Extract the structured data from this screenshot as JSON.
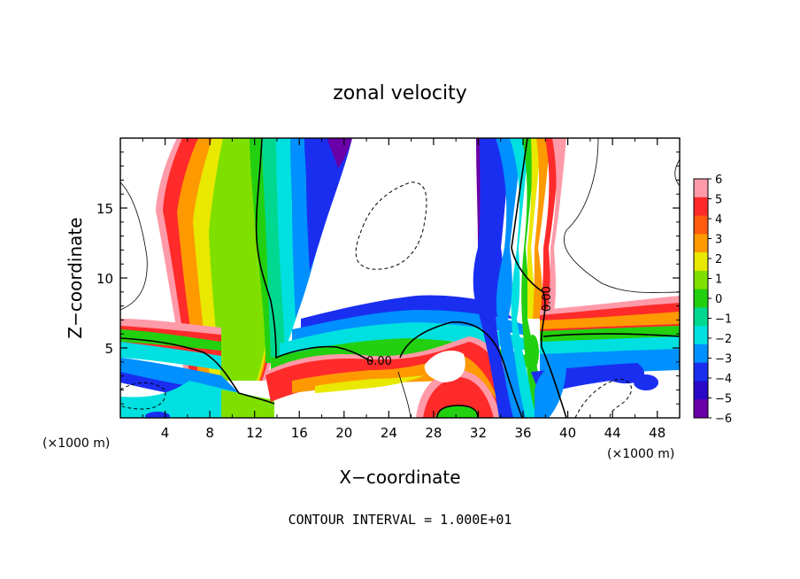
{
  "chart_data": {
    "type": "heatmap",
    "title": "zonal velocity",
    "xlabel": "X−coordinate",
    "ylabel": "Z−coordinate",
    "x_unit_left": "(×1000 m)",
    "x_unit_right": "(×1000 m)",
    "xlim": [
      0,
      50
    ],
    "ylim": [
      0,
      20
    ],
    "xticks": [
      4,
      8,
      12,
      16,
      20,
      24,
      28,
      32,
      36,
      40,
      44,
      48
    ],
    "yticks": [
      5,
      10,
      15
    ],
    "contour_label_1": "0.00",
    "contour_label_2": "0.00",
    "colorbar": {
      "ticks": [
        "6",
        "5",
        "4",
        "3",
        "2",
        "1",
        "0",
        "−1",
        "−2",
        "−3",
        "−4",
        "−5",
        "−6"
      ],
      "levels": [
        6,
        5,
        4,
        3,
        2,
        1,
        0,
        -1,
        -2,
        -3,
        -4,
        -5,
        -6
      ],
      "colors": [
        "#ff9aa8",
        "#ff2a2a",
        "#ff5a10",
        "#ff9900",
        "#e8e800",
        "#7fe000",
        "#22d010",
        "#00d890",
        "#00e0e0",
        "#0090ff",
        "#1a2ef0",
        "#2a0ac8",
        "#6a00a8"
      ]
    },
    "footer": "CONTOUR INTERVAL = 1.000E+01"
  }
}
